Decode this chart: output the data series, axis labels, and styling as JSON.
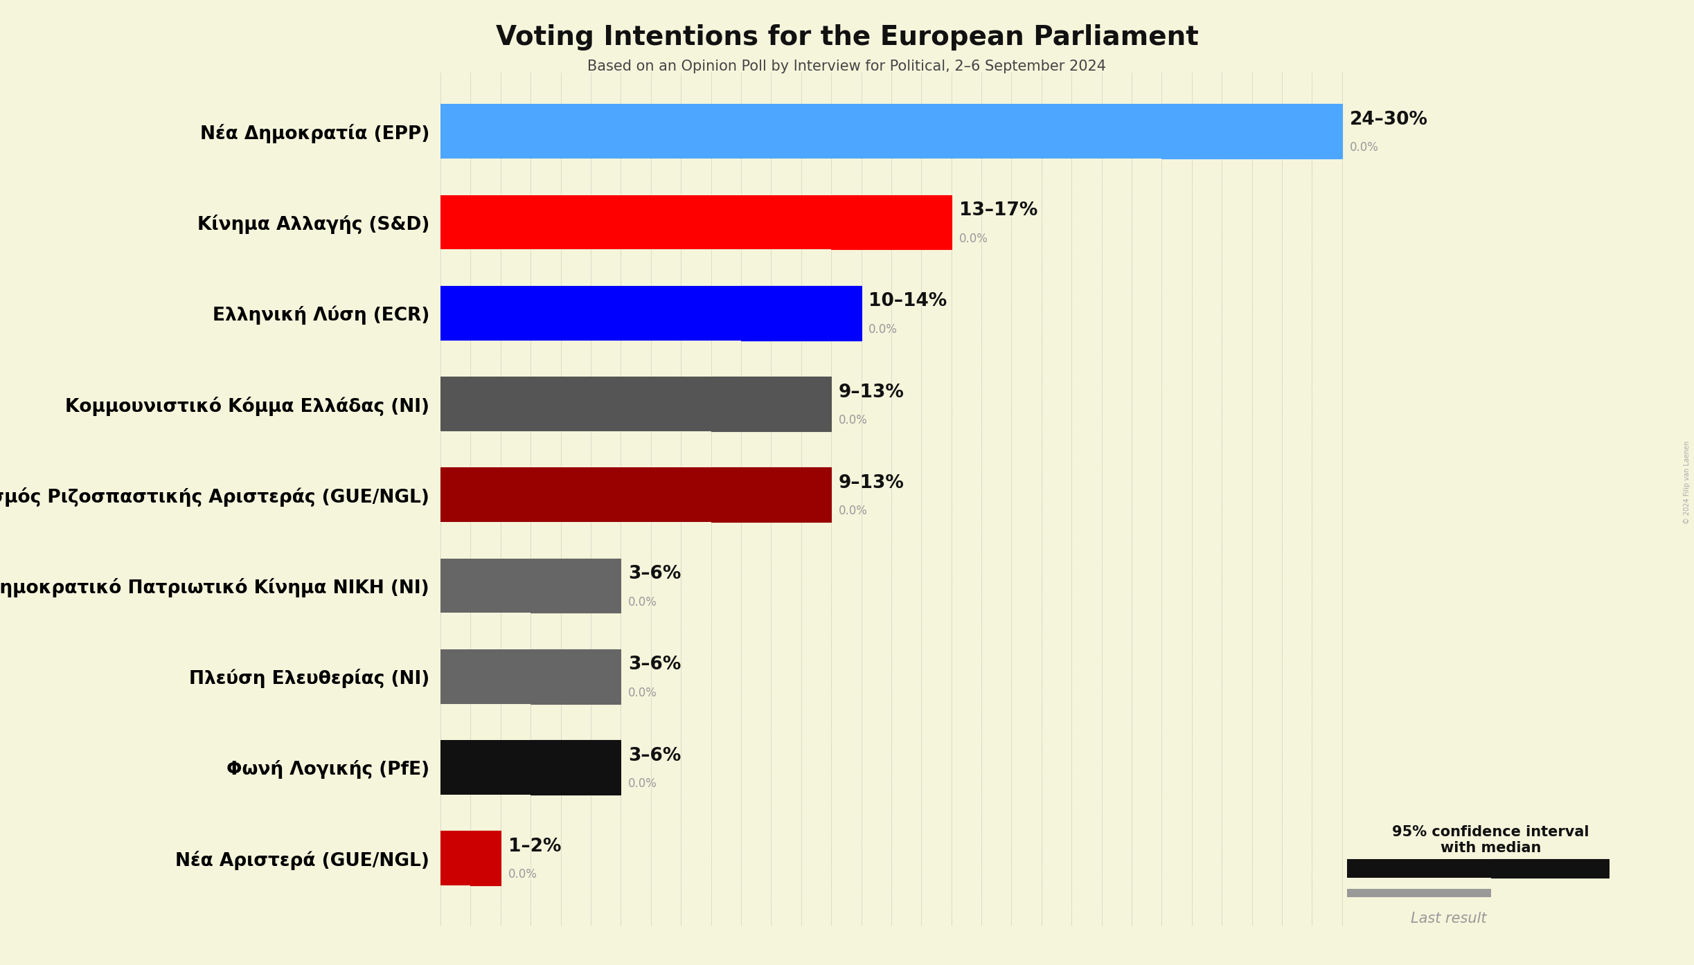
{
  "title": "Voting Intentions for the European Parliament",
  "subtitle": "Based on an Opinion Poll by Interview for Political, 2–6 September 2024",
  "copyright": "© 2024 Filip van Laenen",
  "background_color": "#F5F5DC",
  "parties": [
    {
      "name": "Nέα Δημοκρατία (EPP)",
      "low": 24,
      "high": 30,
      "median": 24,
      "last": 0.0,
      "color": "#4DA6FF",
      "label": "24–30%"
    },
    {
      "name": "Κίνημα Αλλαγής (S&D)",
      "low": 13,
      "high": 17,
      "median": 13,
      "last": 0.0,
      "color": "#FF0000",
      "label": "13–17%"
    },
    {
      "name": "Ελληνική Λύση (ECR)",
      "low": 10,
      "high": 14,
      "median": 10,
      "last": 0.0,
      "color": "#0000FF",
      "label": "10–14%"
    },
    {
      "name": "Κομμουνιστικό Κόμμα Ελλάδας (NI)",
      "low": 9,
      "high": 13,
      "median": 9,
      "last": 0.0,
      "color": "#555555",
      "label": "9–13%"
    },
    {
      "name": "Συνασπισμός Ριζοσπαστικής Αριστεράς (GUE/NGL)",
      "low": 9,
      "high": 13,
      "median": 9,
      "last": 0.0,
      "color": "#990000",
      "label": "9–13%"
    },
    {
      "name": "Δημοκρατικό Πατριωτικό Κίνημα ΝΙΚΗ (NI)",
      "low": 3,
      "high": 6,
      "median": 3,
      "last": 0.0,
      "color": "#666666",
      "label": "3–6%"
    },
    {
      "name": "Πλεύση Ελευθερίας (NI)",
      "low": 3,
      "high": 6,
      "median": 3,
      "last": 0.0,
      "color": "#666666",
      "label": "3–6%"
    },
    {
      "name": "Φωνή Λογικής (PfE)",
      "low": 3,
      "high": 6,
      "median": 3,
      "last": 0.0,
      "color": "#111111",
      "label": "3–6%"
    },
    {
      "name": "Νέα Αριστερά (GUE/NGL)",
      "low": 1,
      "high": 2,
      "median": 1,
      "last": 0.0,
      "color": "#CC0000",
      "label": "1–2%"
    }
  ],
  "xlim": [
    0,
    31
  ],
  "bar_height": 0.6,
  "last_bar_height": 0.25,
  "label_fontsize": 19,
  "title_fontsize": 28,
  "subtitle_fontsize": 15,
  "party_name_fontsize": 19,
  "range_label_fontsize": 19,
  "last_label_fontsize": 12,
  "legend_fontsize": 15
}
